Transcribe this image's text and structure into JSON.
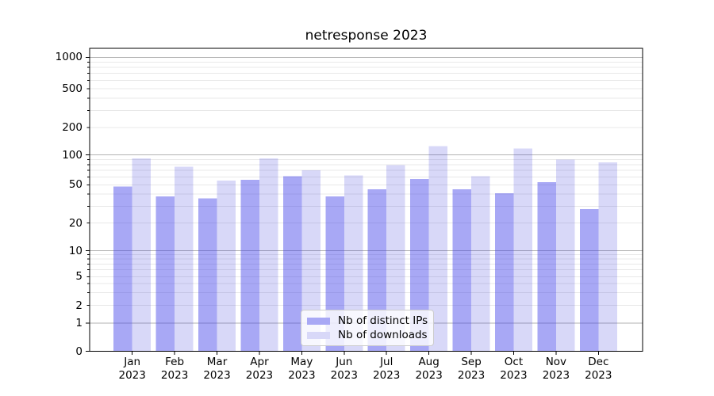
{
  "title": "netresponse 2023",
  "colors": {
    "ips_fill": "rgba(62,62,233,0.45)",
    "downloads_fill": "rgba(60,60,220,0.2)",
    "ips_swatch": "#a8a8f5",
    "downloads_swatch": "#d8d8f8",
    "grid_major": "#b2b2b2",
    "grid_minor": "#e8e8e8",
    "axis": "#000000",
    "text": "#000000",
    "legend_bg": "rgba(255,255,255,0.8)",
    "legend_border": "#cccccc"
  },
  "legend": {
    "position": "lower center",
    "items": [
      {
        "label": "Nb of distinct IPs",
        "series": "ips"
      },
      {
        "label": "Nb of downloads",
        "series": "downloads"
      }
    ]
  },
  "chart_data": {
    "type": "bar",
    "title": "netresponse 2023",
    "categories": [
      "Jan",
      "Feb",
      "Mar",
      "Apr",
      "May",
      "Jun",
      "Jul",
      "Aug",
      "Sep",
      "Oct",
      "Nov",
      "Dec"
    ],
    "category_year": "2023",
    "series": [
      {
        "name": "Nb of distinct IPs",
        "values": [
          48,
          38,
          36,
          56,
          61,
          38,
          45,
          57,
          45,
          41,
          53,
          28
        ]
      },
      {
        "name": "Nb of downloads",
        "values": [
          92,
          76,
          55,
          92,
          70,
          62,
          79,
          125,
          61,
          118,
          90,
          84
        ]
      }
    ],
    "yscale": "symlog",
    "y_tick_labels": [
      0,
      1,
      2,
      5,
      10,
      20,
      50,
      100,
      200,
      500,
      1000
    ],
    "ylim": [
      0,
      1200
    ],
    "grid": true,
    "legend_position": "lower center"
  }
}
